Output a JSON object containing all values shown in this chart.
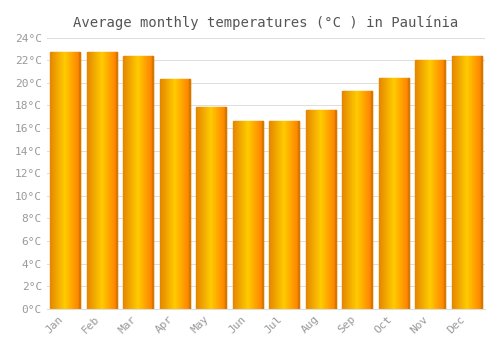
{
  "title": "Average monthly temperatures (°C ) in Paulínia",
  "months": [
    "Jan",
    "Feb",
    "Mar",
    "Apr",
    "May",
    "Jun",
    "Jul",
    "Aug",
    "Sep",
    "Oct",
    "Nov",
    "Dec"
  ],
  "values": [
    22.7,
    22.7,
    22.4,
    20.3,
    17.9,
    16.6,
    16.6,
    17.6,
    19.3,
    20.4,
    22.0,
    22.4
  ],
  "bar_color_left": "#FFD060",
  "bar_color_center": "#FFBB00",
  "bar_color_right": "#FF8C00",
  "bar_edge_color": "#CC7700",
  "ylim": [
    0,
    24
  ],
  "ytick_step": 2,
  "background_color": "#FFFFFF",
  "grid_color": "#DDDDDD",
  "title_fontsize": 10,
  "tick_fontsize": 8,
  "tick_color": "#999999",
  "title_color": "#555555"
}
